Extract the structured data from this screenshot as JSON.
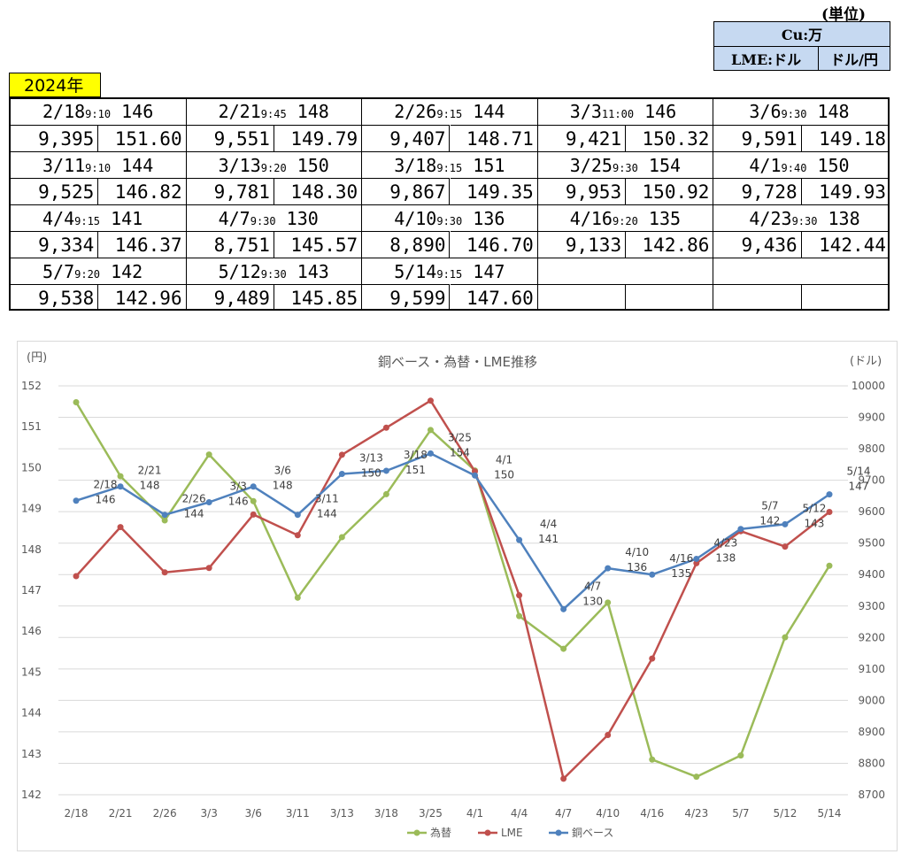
{
  "unit_header": "(単位)",
  "unit_table": {
    "cu_label": "Cu:万",
    "lme_label": "LME:ドル",
    "rate_label": "ドル/円"
  },
  "year_label": "2024年",
  "price_records": [
    {
      "date": "2/18",
      "time": "9:10",
      "copper": "146",
      "lme": "9,395",
      "rate": "151.60"
    },
    {
      "date": "2/21",
      "time": "9:45",
      "copper": "148",
      "lme": "9,551",
      "rate": "149.79"
    },
    {
      "date": "2/26",
      "time": "9:15",
      "copper": "144",
      "lme": "9,407",
      "rate": "148.71"
    },
    {
      "date": "3/3",
      "time": "11:00",
      "copper": "146",
      "lme": "9,421",
      "rate": "150.32"
    },
    {
      "date": "3/6",
      "time": "9:30",
      "copper": "148",
      "lme": "9,591",
      "rate": "149.18"
    },
    {
      "date": "3/11",
      "time": "9:10",
      "copper": "144",
      "lme": "9,525",
      "rate": "146.82"
    },
    {
      "date": "3/13",
      "time": "9:20",
      "copper": "150",
      "lme": "9,781",
      "rate": "148.30"
    },
    {
      "date": "3/18",
      "time": "9:15",
      "copper": "151",
      "lme": "9,867",
      "rate": "149.35"
    },
    {
      "date": "3/25",
      "time": "9:30",
      "copper": "154",
      "lme": "9,953",
      "rate": "150.92"
    },
    {
      "date": "4/1",
      "time": "9:40",
      "copper": "150",
      "lme": "9,728",
      "rate": "149.93"
    },
    {
      "date": "4/4",
      "time": "9:15",
      "copper": "141",
      "lme": "9,334",
      "rate": "146.37"
    },
    {
      "date": "4/7",
      "time": "9:30",
      "copper": "130",
      "lme": "8,751",
      "rate": "145.57"
    },
    {
      "date": "4/10",
      "time": "9:30",
      "copper": "136",
      "lme": "8,890",
      "rate": "146.70"
    },
    {
      "date": "4/16",
      "time": "9:20",
      "copper": "135",
      "lme": "9,133",
      "rate": "142.86"
    },
    {
      "date": "4/23",
      "time": "9:30",
      "copper": "138",
      "lme": "9,436",
      "rate": "142.44"
    },
    {
      "date": "5/7",
      "time": "9:20",
      "copper": "142",
      "lme": "9,538",
      "rate": "142.96"
    },
    {
      "date": "5/12",
      "time": "9:30",
      "copper": "143",
      "lme": "9,489",
      "rate": "145.85"
    },
    {
      "date": "5/14",
      "time": "9:15",
      "copper": "147",
      "lme": "9,599",
      "rate": "147.60"
    }
  ],
  "chart_data": {
    "type": "line",
    "title": "銅ベース・為替・LME推移",
    "left_axis_unit": "(円)",
    "right_axis_unit": "(ドル)",
    "left_ylim": [
      142,
      152
    ],
    "left_ticks": [
      142,
      143,
      144,
      145,
      146,
      147,
      148,
      149,
      150,
      151,
      152
    ],
    "right_ylim": [
      8700,
      10000
    ],
    "right_ticks": [
      8700,
      8800,
      8900,
      9000,
      9100,
      9200,
      9300,
      9400,
      9500,
      9600,
      9700,
      9800,
      9900,
      10000
    ],
    "categories": [
      "2/18",
      "2/21",
      "2/26",
      "3/3",
      "3/6",
      "3/11",
      "3/13",
      "3/18",
      "3/25",
      "4/1",
      "4/4",
      "4/7",
      "4/10",
      "4/16",
      "4/23",
      "5/7",
      "5/12",
      "5/14"
    ],
    "grid": "horizontal",
    "legend_position": "bottom",
    "series": [
      {
        "name": "為替",
        "axis": "left",
        "color": "#9bbb59",
        "values": [
          151.6,
          149.79,
          148.71,
          150.32,
          149.18,
          146.82,
          148.3,
          149.35,
          150.92,
          149.93,
          146.37,
          145.57,
          146.7,
          142.86,
          142.44,
          142.96,
          145.85,
          147.6
        ]
      },
      {
        "name": "LME",
        "axis": "right",
        "color": "#c0504d",
        "values": [
          9395,
          9551,
          9407,
          9421,
          9591,
          9525,
          9781,
          9867,
          9953,
          9728,
          9334,
          8751,
          8890,
          9133,
          9436,
          9538,
          9489,
          9599
        ]
      },
      {
        "name": "銅ベース",
        "axis": "right",
        "color": "#4f81bd",
        "values": [
          9635,
          9680,
          9590,
          9630,
          9680,
          9590,
          9720,
          9730,
          9785,
          9715,
          9510,
          9290,
          9420,
          9400,
          9450,
          9545,
          9560,
          9655
        ],
        "labels": [
          "2/18\n146",
          "2/21\n148",
          "2/26\n144",
          "3/3\n146",
          "3/6\n148",
          "3/11\n144",
          "3/13\n150",
          "3/18\n151",
          "3/25\n154",
          "4/1\n150",
          "4/4\n141",
          "4/7\n130",
          "4/10\n136",
          "4/16\n135",
          "4/23\n138",
          "5/7\n142",
          "5/12\n143",
          "5/14\n147"
        ]
      }
    ]
  }
}
